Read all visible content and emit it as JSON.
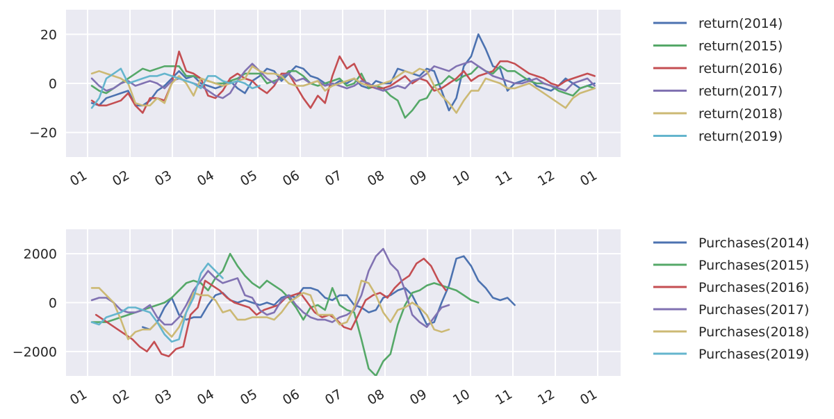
{
  "chart_data": [
    {
      "type": "line",
      "x_ticks": [
        "01",
        "02",
        "03",
        "04",
        "05",
        "06",
        "07",
        "08",
        "09",
        "10",
        "11",
        "12",
        "01"
      ],
      "ylim": [
        -30,
        30
      ],
      "y_ticks": [
        20,
        0,
        -20
      ],
      "y_tick_labels": [
        "20",
        "0",
        "−20"
      ],
      "grid": true,
      "legend_position": "outside-right",
      "series": [
        {
          "name": "return(2014)",
          "color": "#4c72b0",
          "start": 1.1,
          "values": [
            -8,
            -9,
            -6,
            -5,
            -4,
            -3,
            -9,
            -9,
            -7,
            -3,
            -1,
            2,
            5,
            2,
            3,
            0,
            -1,
            -2,
            -1,
            1,
            -2,
            -4,
            1,
            3,
            6,
            5,
            1,
            4,
            7,
            6,
            3,
            2,
            0,
            -1,
            1,
            0,
            2,
            -1,
            -2,
            1,
            0,
            0,
            6,
            5,
            4,
            3,
            6,
            5,
            -3,
            -11,
            -6,
            7,
            11,
            20,
            14,
            7,
            6,
            -3,
            0,
            1,
            2,
            -1,
            -2,
            -3,
            -1,
            2,
            0,
            -2,
            -1,
            0
          ]
        },
        {
          "name": "return(2015)",
          "color": "#55a868",
          "start": 1.1,
          "values": [
            -1,
            -3,
            -4,
            -2,
            0,
            2,
            4,
            6,
            5,
            6,
            7,
            7,
            7,
            3,
            3,
            2,
            1,
            0,
            0,
            1,
            2,
            4,
            4,
            4,
            0,
            1,
            2,
            5,
            5,
            3,
            0,
            -1,
            0,
            1,
            2,
            -1,
            0,
            4,
            -2,
            -1,
            -2,
            -5,
            -7,
            -14,
            -11,
            -7,
            -6,
            -1,
            0,
            3,
            1,
            3,
            4,
            7,
            5,
            4,
            7,
            5,
            5,
            3,
            1,
            0,
            0,
            -1,
            -3,
            -4,
            -5,
            -2,
            -1,
            -2
          ]
        },
        {
          "name": "return(2016)",
          "color": "#c44e52",
          "start": 1.1,
          "values": [
            -7,
            -9,
            -9,
            -8,
            -7,
            -4,
            -9,
            -12,
            -6,
            -6,
            -7,
            0,
            13,
            5,
            4,
            2,
            -5,
            -6,
            -3,
            2,
            4,
            2,
            1,
            -2,
            -4,
            -1,
            4,
            4,
            -1,
            -6,
            -10,
            -5,
            -8,
            3,
            11,
            6,
            8,
            2,
            -1,
            -2,
            -2,
            -1,
            1,
            3,
            0,
            2,
            1,
            -3,
            -2,
            0,
            2,
            5,
            1,
            3,
            4,
            5,
            9,
            9,
            8,
            6,
            4,
            3,
            2,
            0,
            -1,
            1,
            2,
            3,
            4,
            3
          ]
        },
        {
          "name": "return(2017)",
          "color": "#8172b2",
          "start": 1.1,
          "values": [
            2,
            -1,
            -3,
            -2,
            0,
            1,
            -1,
            0,
            1,
            0,
            -2,
            1,
            2,
            1,
            0,
            -1,
            -3,
            -5,
            -6,
            -4,
            1,
            5,
            8,
            5,
            2,
            0,
            3,
            4,
            1,
            2,
            0,
            1,
            -1,
            0,
            -1,
            -2,
            -1,
            1,
            0,
            -2,
            -3,
            -2,
            -1,
            -2,
            1,
            2,
            4,
            7,
            6,
            5,
            7,
            8,
            9,
            7,
            5,
            3,
            2,
            1,
            0,
            0,
            1,
            2,
            0,
            -1,
            -2,
            -3,
            0,
            1,
            2,
            -1
          ]
        },
        {
          "name": "return(2018)",
          "color": "#ccb974",
          "start": 1.1,
          "values": [
            4,
            5,
            4,
            3,
            2,
            0,
            -8,
            -9,
            -9,
            -6,
            -8,
            0,
            3,
            0,
            -5,
            2,
            1,
            0,
            -1,
            0,
            1,
            2,
            7,
            5,
            4,
            4,
            3,
            0,
            -1,
            -1,
            0,
            1,
            -3,
            -1,
            0,
            1,
            2,
            0,
            -1,
            -1,
            0,
            1,
            3,
            5,
            4,
            6,
            5,
            -1,
            -5,
            -8,
            -12,
            -7,
            -3,
            -3,
            2,
            1,
            0,
            -2,
            -2,
            -1,
            0,
            -2,
            -4,
            -6,
            -8,
            -10,
            -6,
            -4,
            -3,
            -2
          ]
        },
        {
          "name": "return(2019)",
          "color": "#64b5cd",
          "start": 1.1,
          "values": [
            -10,
            -6,
            2,
            4,
            6,
            0,
            1,
            2,
            3,
            3,
            4,
            3,
            2,
            1,
            0,
            -2,
            3,
            3,
            1,
            0,
            1,
            0,
            -2,
            -1
          ]
        }
      ]
    },
    {
      "type": "line",
      "x_ticks": [
        "01",
        "02",
        "03",
        "04",
        "05",
        "06",
        "07",
        "08",
        "09",
        "10",
        "11",
        "12",
        "01"
      ],
      "ylim": [
        -3000,
        3000
      ],
      "y_ticks": [
        2000,
        0,
        -2000
      ],
      "y_tick_labels": [
        "2000",
        "0",
        "−2000"
      ],
      "grid": true,
      "legend_position": "outside-right",
      "series": [
        {
          "name": "Purchases(2014)",
          "color": "#4c72b0",
          "start": 2.3,
          "values": [
            -1000,
            -1100,
            -800,
            -200,
            200,
            -500,
            -700,
            -600,
            -600,
            -100,
            300,
            400,
            100,
            0,
            100,
            0,
            -100,
            0,
            -100,
            200,
            300,
            200,
            600,
            600,
            500,
            200,
            100,
            300,
            300,
            -100,
            -200,
            -400,
            -300,
            200,
            300,
            500,
            600,
            300,
            -300,
            -900,
            -800,
            0,
            700,
            1800,
            1900,
            1500,
            900,
            600,
            200,
            100,
            200,
            -100
          ]
        },
        {
          "name": "Purchases(2015)",
          "color": "#55a868",
          "start": 1.1,
          "values": [
            -800,
            -800,
            -800,
            -700,
            -600,
            -500,
            -400,
            -300,
            -200,
            -100,
            0,
            200,
            500,
            800,
            900,
            800,
            500,
            1000,
            1300,
            2000,
            1500,
            1100,
            800,
            600,
            900,
            700,
            500,
            200,
            -200,
            -700,
            -200,
            -100,
            -300,
            600,
            -100,
            -300,
            -400,
            -1500,
            -2700,
            -3000,
            -2400,
            -2100,
            -900,
            -100,
            400,
            500,
            700,
            800,
            700,
            600,
            500,
            300,
            100,
            0
          ]
        },
        {
          "name": "Purchases(2016)",
          "color": "#c44e52",
          "start": 1.2,
          "values": [
            -500,
            -700,
            -900,
            -1100,
            -1300,
            -1500,
            -1800,
            -2000,
            -1600,
            -2100,
            -2200,
            -1900,
            -1800,
            -500,
            -200,
            900,
            700,
            500,
            200,
            0,
            -100,
            -200,
            -500,
            -300,
            -200,
            -100,
            200,
            300,
            400,
            0,
            -400,
            -600,
            -500,
            -700,
            -1000,
            -1100,
            -500,
            100,
            300,
            400,
            200,
            600,
            900,
            1100,
            1600,
            1800,
            1500,
            900,
            500
          ]
        },
        {
          "name": "Purchases(2017)",
          "color": "#8172b2",
          "start": 1.1,
          "values": [
            100,
            200,
            200,
            0,
            -300,
            -400,
            -400,
            -300,
            -100,
            -600,
            -900,
            -900,
            -600,
            -100,
            500,
            900,
            1300,
            1000,
            800,
            900,
            1000,
            300,
            200,
            -300,
            -500,
            -400,
            100,
            300,
            -100,
            -400,
            -600,
            -700,
            -700,
            -800,
            -600,
            -500,
            -300,
            300,
            1300,
            1900,
            2200,
            1600,
            1300,
            500,
            -500,
            -800,
            -1000,
            -600,
            -200,
            -100
          ]
        },
        {
          "name": "Purchases(2018)",
          "color": "#ccb974",
          "start": 1.1,
          "values": [
            600,
            600,
            300,
            0,
            -700,
            -1500,
            -1200,
            -1100,
            -1100,
            -800,
            -1100,
            -1400,
            -1000,
            -400,
            400,
            300,
            300,
            100,
            -400,
            -300,
            -700,
            -700,
            -600,
            -600,
            -600,
            -700,
            -400,
            0,
            200,
            400,
            300,
            -500,
            -500,
            -500,
            -900,
            -800,
            -200,
            900,
            800,
            300,
            -400,
            -800,
            -300,
            -200,
            0,
            -200,
            -500,
            -1100,
            -1200,
            -1100
          ]
        },
        {
          "name": "Purchases(2019)",
          "color": "#64b5cd",
          "start": 1.1,
          "values": [
            -800,
            -900,
            -600,
            -500,
            -400,
            -200,
            -200,
            -300,
            -400,
            -800,
            -1300,
            -1600,
            -1500,
            -400,
            200,
            1200,
            1600,
            1300,
            1000
          ]
        }
      ]
    }
  ]
}
